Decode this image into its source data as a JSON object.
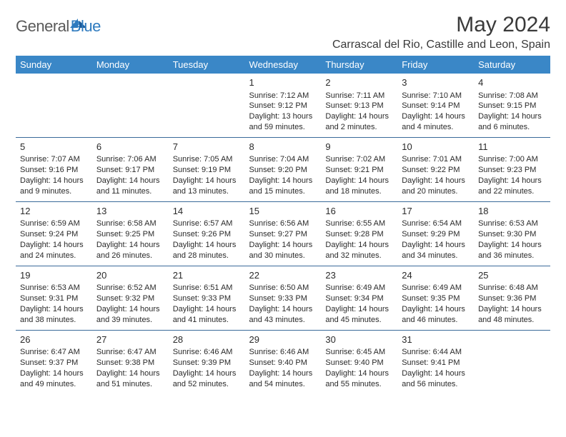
{
  "logo": {
    "text1": "General",
    "text2": "Blue"
  },
  "title": "May 2024",
  "location": "Carrascal del Rio, Castille and Leon, Spain",
  "header_color": "#3a87c7",
  "border_color": "#3a6a9a",
  "days": [
    "Sunday",
    "Monday",
    "Tuesday",
    "Wednesday",
    "Thursday",
    "Friday",
    "Saturday"
  ],
  "weeks": [
    [
      null,
      null,
      null,
      {
        "n": "1",
        "sr": "7:12 AM",
        "ss": "9:12 PM",
        "dl": "13 hours and 59 minutes."
      },
      {
        "n": "2",
        "sr": "7:11 AM",
        "ss": "9:13 PM",
        "dl": "14 hours and 2 minutes."
      },
      {
        "n": "3",
        "sr": "7:10 AM",
        "ss": "9:14 PM",
        "dl": "14 hours and 4 minutes."
      },
      {
        "n": "4",
        "sr": "7:08 AM",
        "ss": "9:15 PM",
        "dl": "14 hours and 6 minutes."
      }
    ],
    [
      {
        "n": "5",
        "sr": "7:07 AM",
        "ss": "9:16 PM",
        "dl": "14 hours and 9 minutes."
      },
      {
        "n": "6",
        "sr": "7:06 AM",
        "ss": "9:17 PM",
        "dl": "14 hours and 11 minutes."
      },
      {
        "n": "7",
        "sr": "7:05 AM",
        "ss": "9:19 PM",
        "dl": "14 hours and 13 minutes."
      },
      {
        "n": "8",
        "sr": "7:04 AM",
        "ss": "9:20 PM",
        "dl": "14 hours and 15 minutes."
      },
      {
        "n": "9",
        "sr": "7:02 AM",
        "ss": "9:21 PM",
        "dl": "14 hours and 18 minutes."
      },
      {
        "n": "10",
        "sr": "7:01 AM",
        "ss": "9:22 PM",
        "dl": "14 hours and 20 minutes."
      },
      {
        "n": "11",
        "sr": "7:00 AM",
        "ss": "9:23 PM",
        "dl": "14 hours and 22 minutes."
      }
    ],
    [
      {
        "n": "12",
        "sr": "6:59 AM",
        "ss": "9:24 PM",
        "dl": "14 hours and 24 minutes."
      },
      {
        "n": "13",
        "sr": "6:58 AM",
        "ss": "9:25 PM",
        "dl": "14 hours and 26 minutes."
      },
      {
        "n": "14",
        "sr": "6:57 AM",
        "ss": "9:26 PM",
        "dl": "14 hours and 28 minutes."
      },
      {
        "n": "15",
        "sr": "6:56 AM",
        "ss": "9:27 PM",
        "dl": "14 hours and 30 minutes."
      },
      {
        "n": "16",
        "sr": "6:55 AM",
        "ss": "9:28 PM",
        "dl": "14 hours and 32 minutes."
      },
      {
        "n": "17",
        "sr": "6:54 AM",
        "ss": "9:29 PM",
        "dl": "14 hours and 34 minutes."
      },
      {
        "n": "18",
        "sr": "6:53 AM",
        "ss": "9:30 PM",
        "dl": "14 hours and 36 minutes."
      }
    ],
    [
      {
        "n": "19",
        "sr": "6:53 AM",
        "ss": "9:31 PM",
        "dl": "14 hours and 38 minutes."
      },
      {
        "n": "20",
        "sr": "6:52 AM",
        "ss": "9:32 PM",
        "dl": "14 hours and 39 minutes."
      },
      {
        "n": "21",
        "sr": "6:51 AM",
        "ss": "9:33 PM",
        "dl": "14 hours and 41 minutes."
      },
      {
        "n": "22",
        "sr": "6:50 AM",
        "ss": "9:33 PM",
        "dl": "14 hours and 43 minutes."
      },
      {
        "n": "23",
        "sr": "6:49 AM",
        "ss": "9:34 PM",
        "dl": "14 hours and 45 minutes."
      },
      {
        "n": "24",
        "sr": "6:49 AM",
        "ss": "9:35 PM",
        "dl": "14 hours and 46 minutes."
      },
      {
        "n": "25",
        "sr": "6:48 AM",
        "ss": "9:36 PM",
        "dl": "14 hours and 48 minutes."
      }
    ],
    [
      {
        "n": "26",
        "sr": "6:47 AM",
        "ss": "9:37 PM",
        "dl": "14 hours and 49 minutes."
      },
      {
        "n": "27",
        "sr": "6:47 AM",
        "ss": "9:38 PM",
        "dl": "14 hours and 51 minutes."
      },
      {
        "n": "28",
        "sr": "6:46 AM",
        "ss": "9:39 PM",
        "dl": "14 hours and 52 minutes."
      },
      {
        "n": "29",
        "sr": "6:46 AM",
        "ss": "9:40 PM",
        "dl": "14 hours and 54 minutes."
      },
      {
        "n": "30",
        "sr": "6:45 AM",
        "ss": "9:40 PM",
        "dl": "14 hours and 55 minutes."
      },
      {
        "n": "31",
        "sr": "6:44 AM",
        "ss": "9:41 PM",
        "dl": "14 hours and 56 minutes."
      },
      null
    ]
  ],
  "labels": {
    "sunrise": "Sunrise:",
    "sunset": "Sunset:",
    "daylight": "Daylight:"
  }
}
